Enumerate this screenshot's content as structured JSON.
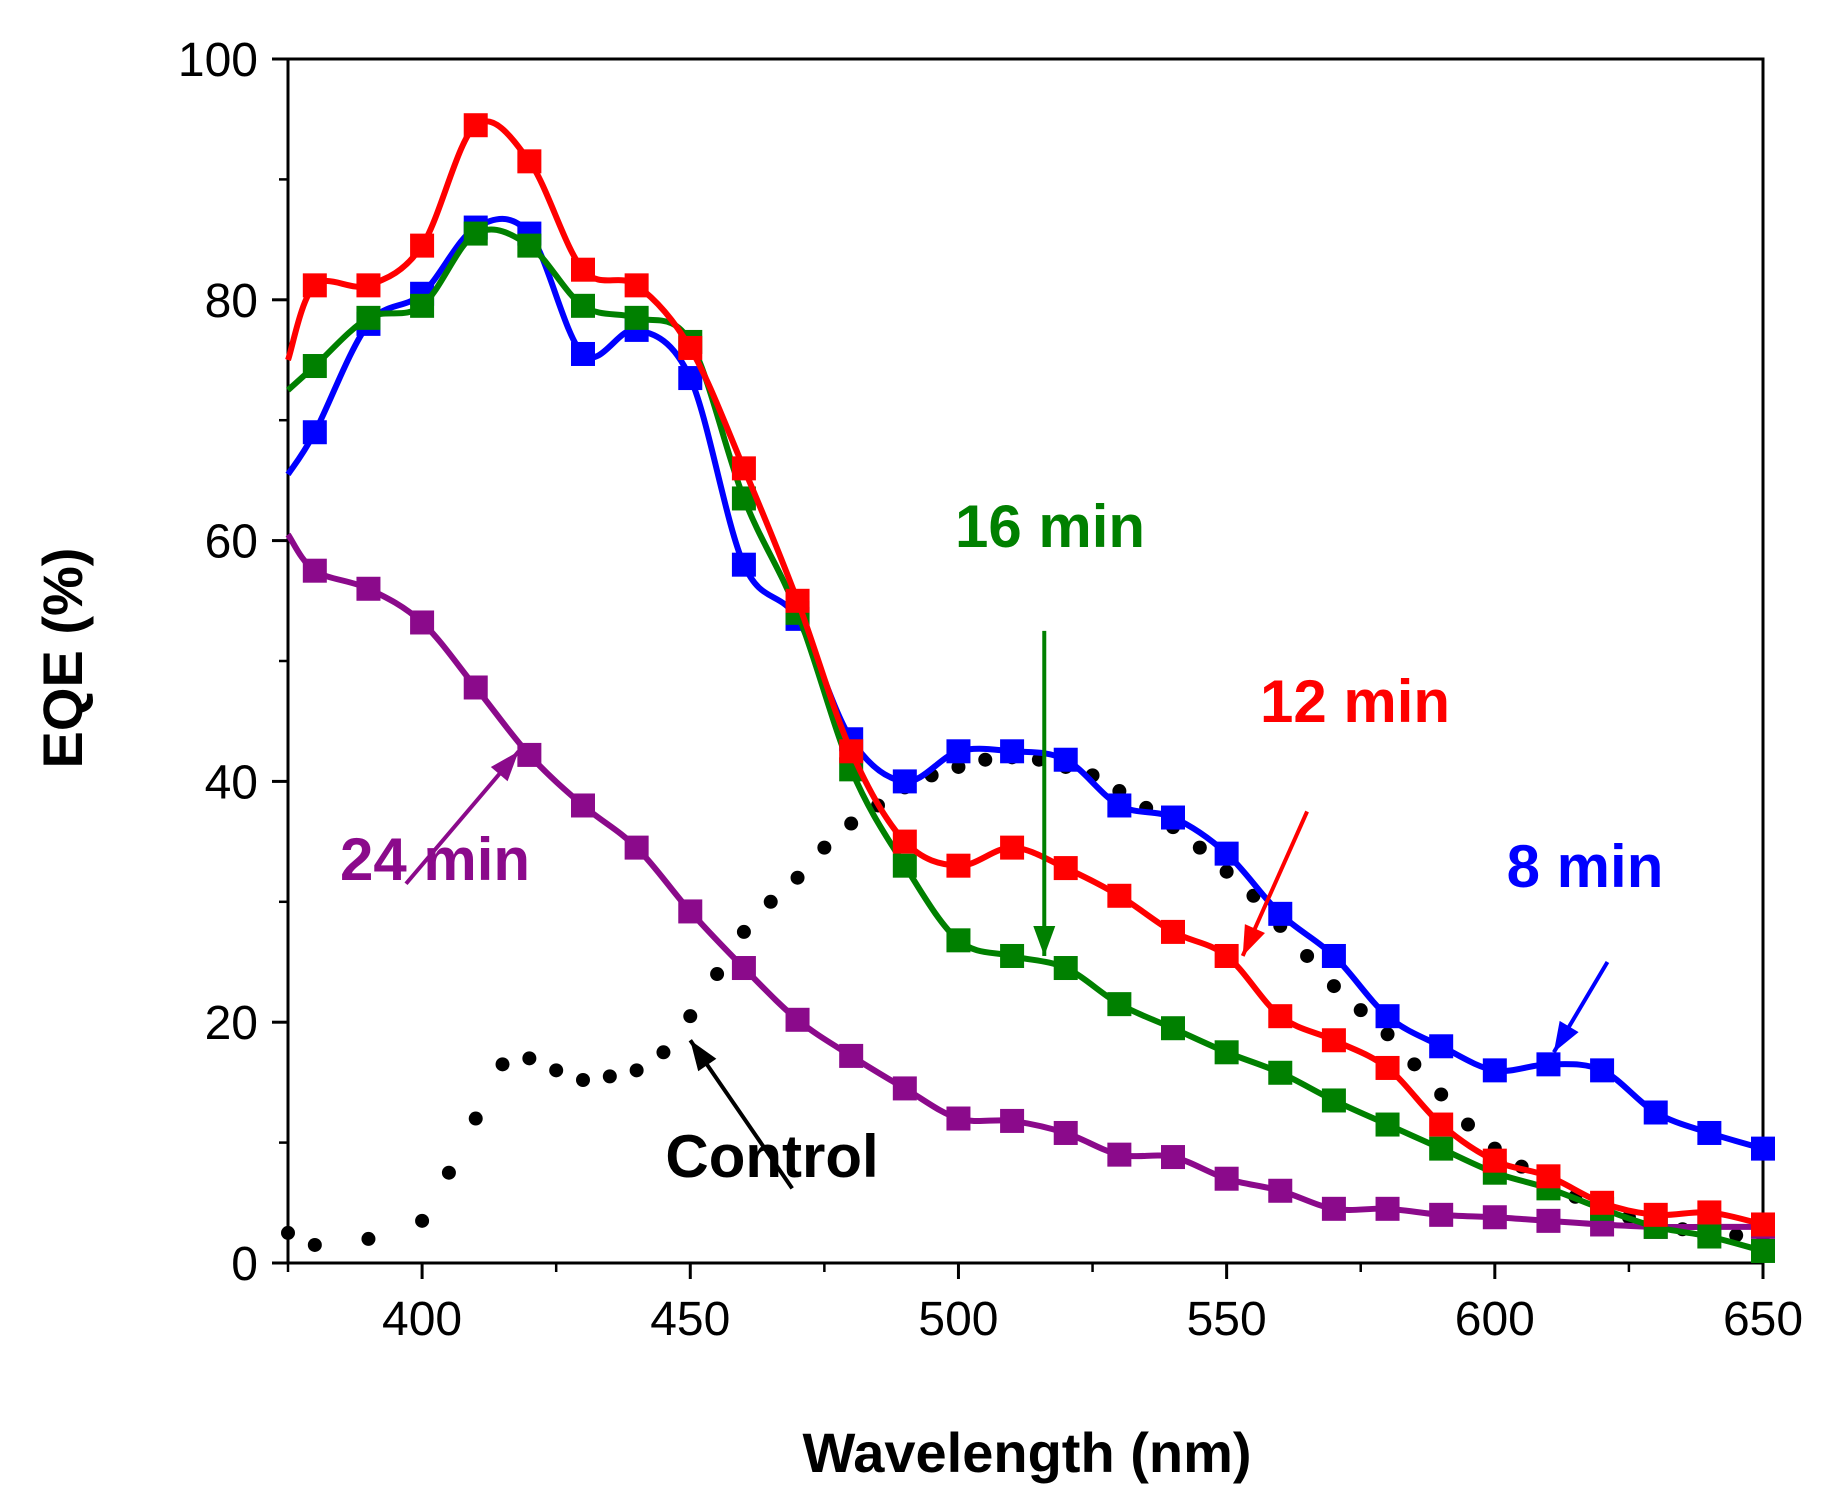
{
  "chart_data": {
    "type": "line",
    "title": "",
    "xlabel": "Wavelength (nm)",
    "ylabel": "EQE (%)",
    "xlim": [
      375,
      650
    ],
    "ylim": [
      0,
      100
    ],
    "x_ticks": [
      400,
      450,
      500,
      550,
      600,
      650
    ],
    "y_ticks": [
      0,
      20,
      40,
      60,
      80,
      100
    ],
    "x_tick_labels": [
      "400",
      "450",
      "500",
      "550",
      "600",
      "650"
    ],
    "y_tick_labels": [
      "0",
      "20",
      "40",
      "60",
      "80",
      "100"
    ],
    "grid": false,
    "series": [
      {
        "name": "8 min",
        "color": "#0000ff",
        "marker": "square",
        "line": "solid",
        "x": [
          380,
          390,
          400,
          410,
          420,
          430,
          440,
          450,
          460,
          470,
          480,
          490,
          500,
          510,
          520,
          530,
          540,
          550,
          560,
          570,
          580,
          590,
          600,
          610,
          620,
          630,
          640,
          650
        ],
        "y": [
          69,
          78,
          80.5,
          86,
          85.5,
          75.5,
          77.5,
          73.5,
          58,
          53.5,
          43.5,
          40,
          42.5,
          42.5,
          41.8,
          38,
          37,
          34,
          29,
          25.5,
          20.5,
          18,
          16,
          16.5,
          16,
          12.5,
          10.8,
          9.5
        ],
        "curve_start": [
          375,
          65.5
        ]
      },
      {
        "name": "12 min",
        "color": "#ff0000",
        "marker": "square",
        "line": "solid",
        "x": [
          380,
          390,
          400,
          410,
          420,
          430,
          440,
          450,
          460,
          470,
          480,
          490,
          500,
          510,
          520,
          530,
          540,
          550,
          560,
          570,
          580,
          590,
          600,
          610,
          620,
          630,
          640,
          650
        ],
        "y": [
          81.2,
          81.2,
          84.5,
          94.5,
          91.5,
          82.5,
          81.2,
          76,
          66,
          55,
          42.5,
          35,
          33,
          34.5,
          32.8,
          30.5,
          27.5,
          25.5,
          20.5,
          18.5,
          16.2,
          11.5,
          8.5,
          7.2,
          5,
          4,
          4.2,
          3.2
        ],
        "curve_start": [
          375,
          75
        ]
      },
      {
        "name": "16 min",
        "color": "#008000",
        "marker": "square",
        "line": "solid",
        "x": [
          380,
          390,
          400,
          410,
          420,
          430,
          440,
          450,
          460,
          470,
          480,
          490,
          500,
          510,
          520,
          530,
          540,
          550,
          560,
          570,
          580,
          590,
          600,
          610,
          620,
          630,
          640,
          650
        ],
        "y": [
          74.5,
          78.5,
          79.5,
          85.5,
          84.5,
          79.5,
          78.5,
          76.5,
          63.5,
          54,
          41,
          33,
          26.8,
          25.5,
          24.5,
          21.5,
          19.5,
          17.5,
          15.8,
          13.5,
          11.5,
          9.5,
          7.5,
          6.2,
          4.5,
          3,
          2.2,
          1
        ],
        "curve_start": [
          375,
          72.5
        ]
      },
      {
        "name": "24 min",
        "color": "#8b0a8b",
        "marker": "square",
        "line": "solid",
        "x": [
          380,
          390,
          400,
          410,
          420,
          430,
          440,
          450,
          460,
          470,
          480,
          490,
          500,
          510,
          520,
          530,
          540,
          550,
          560,
          570,
          580,
          590,
          600,
          610,
          620,
          630,
          640,
          650
        ],
        "y": [
          57.5,
          56,
          53.2,
          47.8,
          42.2,
          38,
          34.5,
          29.2,
          24.5,
          20.2,
          17.2,
          14.5,
          12,
          11.8,
          10.8,
          9,
          8.8,
          7,
          6,
          4.5,
          4.5,
          4,
          3.8,
          3.5,
          3.2,
          3,
          3,
          3
        ],
        "curve_start": [
          375,
          60.5
        ]
      },
      {
        "name": "Control",
        "color": "#000000",
        "marker": "none",
        "line": "dotted",
        "x": [
          375,
          380,
          390,
          400,
          405,
          410,
          415,
          420,
          425,
          430,
          435,
          440,
          445,
          450,
          455,
          460,
          465,
          470,
          475,
          480,
          485,
          490,
          495,
          500,
          505,
          510,
          515,
          520,
          525,
          530,
          535,
          540,
          545,
          550,
          555,
          560,
          565,
          570,
          575,
          580,
          585,
          590,
          595,
          600,
          605,
          610,
          615,
          620,
          625,
          630,
          635,
          640,
          645,
          650
        ],
        "y": [
          2.5,
          1.5,
          2,
          3.5,
          7.5,
          12,
          16.5,
          17,
          16,
          15.2,
          15.5,
          16,
          17.5,
          20.5,
          24,
          27.5,
          30,
          32,
          34.5,
          36.5,
          38,
          39.5,
          40.5,
          41.2,
          41.8,
          42,
          41.8,
          41.2,
          40.5,
          39.2,
          37.8,
          36.2,
          34.5,
          32.5,
          30.5,
          28,
          25.5,
          23,
          21,
          19,
          16.5,
          14,
          11.5,
          9.5,
          8,
          6.5,
          5.5,
          4.5,
          3.8,
          3.2,
          2.8,
          2.5,
          2.3,
          2.2
        ]
      }
    ],
    "annotations": [
      {
        "text": "16 min",
        "color": "#008000",
        "arrow_from": [
          516,
          52.5
        ],
        "arrow_to": [
          516,
          25.5
        ]
      },
      {
        "text": "12 min",
        "color": "#ff0000",
        "arrow_from": [
          565,
          37.5
        ],
        "arrow_to": [
          553,
          25.5
        ]
      },
      {
        "text": "8 min",
        "color": "#0000ff",
        "arrow_from": [
          621,
          25
        ],
        "arrow_to": [
          611,
          17.5
        ]
      },
      {
        "text": "24 min",
        "color": "#8b0a8b",
        "arrow_from": [
          397,
          31.5
        ],
        "arrow_to": [
          418,
          42.5
        ]
      },
      {
        "text": "Control",
        "color": "#000000",
        "arrow_from": [
          469,
          6.2
        ],
        "arrow_to": [
          450,
          18.5
        ]
      }
    ]
  }
}
